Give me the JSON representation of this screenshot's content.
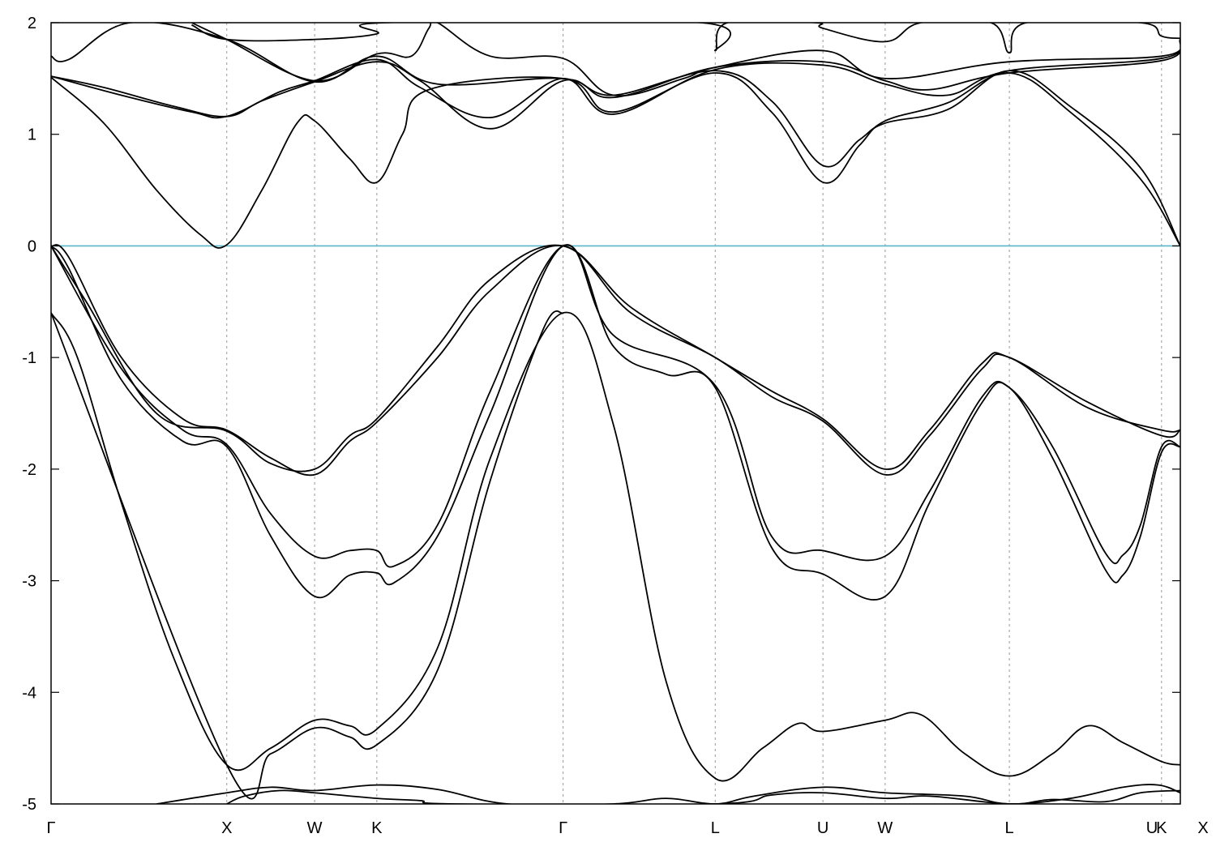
{
  "chart_data": {
    "type": "line",
    "title": "",
    "xlabel": "",
    "ylabel": "",
    "ylim": [
      -5,
      2
    ],
    "yticks": [
      -5,
      -4,
      -3,
      -2,
      -1,
      0,
      1,
      2
    ],
    "grid": "vertical dashed lines at high-symmetry points",
    "fermi_level": {
      "value": 0,
      "color": "#5ab4c8"
    },
    "band_color": "#000000",
    "kpoints": [
      {
        "label": "Γ",
        "x": 0.0
      },
      {
        "label": "X",
        "x": 1.0
      },
      {
        "label": "W",
        "x": 1.5
      },
      {
        "label": "K",
        "x": 1.854
      },
      {
        "label": "Γ",
        "x": 2.914
      },
      {
        "label": "L",
        "x": 3.78
      },
      {
        "label": "U",
        "x": 4.393
      },
      {
        "label": "W",
        "x": 4.747
      },
      {
        "label": "L",
        "x": 5.454
      },
      {
        "label": "K",
        "x": 6.32
      },
      {
        "label": "U",
        "x": 6.427
      },
      {
        "label": "X",
        "x": 6.427
      }
    ],
    "series": [
      {
        "values": [
          [
            0.0,
            -0.6
          ],
          [
            0.15,
            -1.0
          ],
          [
            0.4,
            -2.3
          ],
          [
            0.7,
            -3.7
          ],
          [
            1.0,
            -4.65
          ],
          [
            1.25,
            -4.5
          ],
          [
            1.5,
            -4.25
          ],
          [
            1.7,
            -4.3
          ],
          [
            1.854,
            -4.33
          ],
          [
            2.2,
            -3.6
          ],
          [
            2.5,
            -1.9
          ],
          [
            2.914,
            -0.6
          ],
          [
            3.2,
            -1.6
          ],
          [
            3.5,
            -3.9
          ],
          [
            3.78,
            -4.77
          ],
          [
            4.05,
            -4.5
          ],
          [
            4.25,
            -4.28
          ],
          [
            4.393,
            -4.35
          ],
          [
            4.747,
            -4.25
          ],
          [
            4.95,
            -4.2
          ],
          [
            5.2,
            -4.55
          ],
          [
            5.454,
            -4.75
          ],
          [
            5.7,
            -4.55
          ],
          [
            5.9,
            -4.3
          ],
          [
            6.1,
            -4.45
          ],
          [
            6.32,
            -4.62
          ],
          [
            6.427,
            -4.65
          ]
        ]
      },
      {
        "values": [
          [
            0.0,
            -0.6
          ],
          [
            1.0,
            -4.65
          ],
          [
            1.25,
            -4.55
          ],
          [
            1.5,
            -4.32
          ],
          [
            1.7,
            -4.4
          ],
          [
            1.854,
            -4.47
          ],
          [
            2.2,
            -3.8
          ],
          [
            2.5,
            -2.1
          ],
          [
            2.8,
            -0.75
          ],
          [
            2.914,
            -0.6
          ]
        ]
      },
      {
        "values": [
          [
            0.0,
            0.0
          ],
          [
            0.1,
            -0.2
          ],
          [
            0.4,
            -1.2
          ],
          [
            0.75,
            -1.75
          ],
          [
            1.0,
            -1.8
          ],
          [
            1.25,
            -2.6
          ],
          [
            1.5,
            -3.14
          ],
          [
            1.7,
            -2.95
          ],
          [
            1.854,
            -2.93
          ],
          [
            1.95,
            -3.02
          ],
          [
            2.2,
            -2.6
          ],
          [
            2.5,
            -1.5
          ],
          [
            2.914,
            0.0
          ],
          [
            3.2,
            -0.9
          ],
          [
            3.5,
            -1.15
          ],
          [
            3.78,
            -1.27
          ],
          [
            4.1,
            -2.7
          ],
          [
            4.393,
            -2.94
          ],
          [
            4.747,
            -3.14
          ],
          [
            5.0,
            -2.3
          ],
          [
            5.3,
            -1.4
          ],
          [
            5.454,
            -1.27
          ],
          [
            5.7,
            -1.9
          ],
          [
            6.0,
            -2.9
          ],
          [
            6.1,
            -2.95
          ],
          [
            6.2,
            -2.6
          ],
          [
            6.32,
            -1.85
          ],
          [
            6.427,
            -1.8
          ]
        ]
      },
      {
        "values": [
          [
            0.0,
            0.0
          ],
          [
            0.1,
            -0.1
          ],
          [
            0.4,
            -1.0
          ],
          [
            0.75,
            -1.55
          ],
          [
            1.0,
            -1.65
          ],
          [
            1.25,
            -1.9
          ],
          [
            1.5,
            -2.05
          ],
          [
            1.7,
            -1.75
          ],
          [
            1.854,
            -1.58
          ],
          [
            2.2,
            -1.0
          ],
          [
            2.5,
            -0.4
          ],
          [
            2.914,
            0.0
          ],
          [
            3.3,
            -0.6
          ],
          [
            3.78,
            -1.0
          ],
          [
            4.1,
            -1.35
          ],
          [
            4.393,
            -1.57
          ],
          [
            4.747,
            -2.05
          ],
          [
            5.0,
            -1.7
          ],
          [
            5.3,
            -1.1
          ],
          [
            5.454,
            -1.0
          ],
          [
            5.9,
            -1.45
          ],
          [
            6.32,
            -1.65
          ],
          [
            6.427,
            -1.65
          ]
        ]
      },
      {
        "values": [
          [
            0.0,
            0.0
          ],
          [
            0.4,
            -1.1
          ],
          [
            0.75,
            -1.65
          ],
          [
            1.0,
            -1.78
          ],
          [
            1.25,
            -2.4
          ],
          [
            1.5,
            -2.78
          ],
          [
            1.7,
            -2.73
          ],
          [
            1.854,
            -2.73
          ],
          [
            1.95,
            -2.87
          ],
          [
            2.2,
            -2.5
          ],
          [
            2.5,
            -1.3
          ],
          [
            2.914,
            0.0
          ],
          [
            3.2,
            -0.8
          ],
          [
            3.78,
            -1.25
          ],
          [
            4.1,
            -2.6
          ],
          [
            4.393,
            -2.73
          ],
          [
            4.747,
            -2.78
          ],
          [
            5.0,
            -2.2
          ],
          [
            5.3,
            -1.35
          ],
          [
            5.454,
            -1.27
          ],
          [
            5.7,
            -1.8
          ],
          [
            6.0,
            -2.75
          ],
          [
            6.1,
            -2.77
          ],
          [
            6.2,
            -2.5
          ],
          [
            6.32,
            -1.8
          ],
          [
            6.427,
            -1.8
          ]
        ]
      },
      {
        "values": [
          [
            0.0,
            0.0
          ],
          [
            0.2,
            -0.5
          ],
          [
            0.6,
            -1.5
          ],
          [
            1.0,
            -1.66
          ],
          [
            1.25,
            -1.95
          ],
          [
            1.5,
            -2.0
          ],
          [
            1.7,
            -1.7
          ],
          [
            1.854,
            -1.55
          ],
          [
            2.2,
            -0.9
          ],
          [
            2.5,
            -0.3
          ],
          [
            2.914,
            0.0
          ],
          [
            3.3,
            -0.55
          ],
          [
            3.78,
            -1.0
          ],
          [
            4.1,
            -1.3
          ],
          [
            4.393,
            -1.55
          ],
          [
            4.747,
            -2.0
          ],
          [
            5.0,
            -1.65
          ],
          [
            5.3,
            -1.05
          ],
          [
            5.454,
            -1.0
          ],
          [
            5.9,
            -1.4
          ],
          [
            6.32,
            -1.7
          ],
          [
            6.427,
            -1.65
          ]
        ]
      },
      {
        "values": [
          [
            0.0,
            1.51
          ],
          [
            0.3,
            1.1
          ],
          [
            0.6,
            0.5
          ],
          [
            0.85,
            0.1
          ],
          [
            1.0,
            0.01
          ],
          [
            1.2,
            0.5
          ],
          [
            1.4,
            1.1
          ],
          [
            1.5,
            1.12
          ],
          [
            1.7,
            0.78
          ],
          [
            1.854,
            0.57
          ],
          [
            2.0,
            1.0
          ],
          [
            2.15,
            1.4
          ],
          [
            2.914,
            1.5
          ],
          [
            3.2,
            1.2
          ],
          [
            3.78,
            1.55
          ],
          [
            4.1,
            1.2
          ],
          [
            4.393,
            0.57
          ],
          [
            4.6,
            0.9
          ],
          [
            4.747,
            1.12
          ],
          [
            5.1,
            1.28
          ],
          [
            5.454,
            1.55
          ],
          [
            5.8,
            1.2
          ],
          [
            6.2,
            0.6
          ],
          [
            6.427,
            0.0
          ]
        ]
      },
      {
        "values": [
          [
            0.0,
            1.52
          ],
          [
            0.3,
            1.42
          ],
          [
            0.7,
            1.25
          ],
          [
            1.0,
            1.16
          ],
          [
            1.2,
            1.3
          ],
          [
            1.5,
            1.47
          ],
          [
            1.854,
            1.65
          ],
          [
            2.1,
            1.48
          ],
          [
            2.5,
            1.05
          ],
          [
            2.914,
            1.48
          ],
          [
            3.2,
            1.35
          ],
          [
            3.78,
            1.57
          ],
          [
            4.1,
            1.3
          ],
          [
            4.393,
            0.72
          ],
          [
            4.6,
            0.95
          ],
          [
            4.747,
            1.1
          ],
          [
            5.1,
            1.22
          ],
          [
            5.454,
            1.57
          ],
          [
            5.8,
            1.25
          ],
          [
            6.2,
            0.7
          ],
          [
            6.427,
            0.0
          ]
        ]
      },
      {
        "values": [
          [
            0.0,
            1.7
          ],
          [
            0.1,
            1.67
          ],
          [
            0.45,
            2.0
          ],
          [
            1.0,
            1.85
          ],
          [
            1.5,
            1.47
          ],
          [
            1.854,
            1.7
          ],
          [
            2.2,
            1.45
          ],
          [
            2.914,
            1.5
          ],
          [
            3.2,
            1.33
          ],
          [
            3.78,
            1.6
          ],
          [
            4.393,
            1.65
          ],
          [
            4.747,
            1.48
          ],
          [
            5.0,
            1.4
          ],
          [
            5.454,
            1.55
          ],
          [
            6.32,
            1.66
          ],
          [
            6.427,
            1.85
          ]
        ]
      },
      {
        "values": [
          [
            0.0,
            1.52
          ],
          [
            0.4,
            1.35
          ],
          [
            0.8,
            1.2
          ],
          [
            1.0,
            1.16
          ],
          [
            1.3,
            1.38
          ],
          [
            1.5,
            1.48
          ],
          [
            1.854,
            1.67
          ],
          [
            2.1,
            1.42
          ],
          [
            2.5,
            1.15
          ],
          [
            2.914,
            1.5
          ],
          [
            3.2,
            1.18
          ],
          [
            3.78,
            1.58
          ],
          [
            4.393,
            1.62
          ],
          [
            4.747,
            1.45
          ],
          [
            5.1,
            1.35
          ],
          [
            5.454,
            1.57
          ],
          [
            6.32,
            1.68
          ],
          [
            6.427,
            1.85
          ]
        ]
      },
      {
        "values": [
          [
            0.8,
            2.0
          ],
          [
            1.0,
            1.85
          ],
          [
            1.5,
            1.48
          ],
          [
            1.854,
            1.72
          ],
          [
            2.05,
            1.7
          ],
          [
            2.15,
            1.95
          ],
          [
            2.2,
            2.0
          ],
          [
            2.5,
            1.7
          ],
          [
            2.914,
            1.68
          ],
          [
            3.2,
            1.35
          ],
          [
            3.6,
            1.5
          ],
          [
            3.78,
            1.6
          ],
          [
            4.393,
            1.75
          ],
          [
            4.747,
            1.5
          ],
          [
            5.454,
            1.65
          ],
          [
            6.32,
            1.7
          ],
          [
            6.427,
            1.85
          ]
        ]
      },
      {
        "values": [
          [
            0.8,
            1.98
          ],
          [
            1.0,
            1.85
          ],
          [
            1.5,
            1.85
          ],
          [
            1.854,
            1.9
          ],
          [
            1.9,
            2.0
          ],
          [
            3.7,
            2.0
          ],
          [
            3.78,
            1.75
          ],
          [
            3.85,
            2.0
          ],
          [
            4.35,
            2.0
          ],
          [
            4.393,
            1.95
          ],
          [
            4.747,
            1.83
          ],
          [
            4.95,
            2.0
          ],
          [
            5.35,
            2.0
          ],
          [
            5.454,
            1.73
          ],
          [
            5.55,
            2.0
          ],
          [
            6.2,
            2.0
          ],
          [
            6.32,
            1.88
          ],
          [
            6.427,
            1.86
          ]
        ]
      },
      {
        "values": [
          [
            0.6,
            -5.0
          ],
          [
            1.0,
            -4.9
          ],
          [
            1.25,
            -4.85
          ],
          [
            1.5,
            -4.88
          ],
          [
            1.854,
            -4.83
          ],
          [
            2.2,
            -4.87
          ],
          [
            2.6,
            -5.0
          ],
          [
            3.2,
            -5.0
          ],
          [
            3.5,
            -4.95
          ],
          [
            3.78,
            -5.0
          ],
          [
            4.0,
            -4.93
          ],
          [
            4.393,
            -4.85
          ],
          [
            4.747,
            -4.9
          ],
          [
            5.2,
            -4.93
          ],
          [
            5.454,
            -5.0
          ],
          [
            5.8,
            -4.95
          ],
          [
            6.1,
            -4.85
          ],
          [
            6.3,
            -4.83
          ],
          [
            6.427,
            -4.9
          ]
        ]
      },
      {
        "values": [
          [
            1.0,
            -5.0
          ],
          [
            1.1,
            -4.93
          ],
          [
            1.3,
            -4.88
          ],
          [
            1.5,
            -4.9
          ],
          [
            1.854,
            -4.95
          ],
          [
            2.1,
            -4.97
          ],
          [
            2.3,
            -5.0
          ],
          [
            3.78,
            -5.0
          ],
          [
            4.1,
            -4.92
          ],
          [
            4.393,
            -4.9
          ],
          [
            4.747,
            -4.95
          ],
          [
            5.0,
            -4.93
          ],
          [
            5.454,
            -5.0
          ],
          [
            5.7,
            -4.96
          ],
          [
            6.0,
            -4.98
          ],
          [
            6.2,
            -4.9
          ],
          [
            6.427,
            -4.88
          ]
        ]
      }
    ]
  }
}
